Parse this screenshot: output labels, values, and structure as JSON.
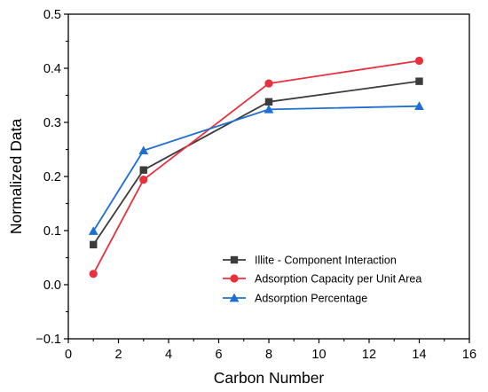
{
  "chart_data": {
    "type": "line",
    "title": "",
    "xlabel": "Carbon Number",
    "ylabel": "Normalized Data",
    "xlim": [
      0,
      16
    ],
    "ylim": [
      -0.1,
      0.5
    ],
    "x_ticks": [
      0,
      2,
      4,
      6,
      8,
      10,
      12,
      14,
      16
    ],
    "y_ticks": [
      -0.1,
      0.0,
      0.1,
      0.2,
      0.3,
      0.4,
      0.5
    ],
    "x_tick_labels": [
      "0",
      "2",
      "4",
      "6",
      "8",
      "10",
      "12",
      "14",
      "16"
    ],
    "y_tick_labels": [
      "−0.1",
      "0.0",
      "0.1",
      "0.2",
      "0.3",
      "0.4",
      "0.5"
    ],
    "grid": false,
    "legend_position": "bottom-right",
    "series": [
      {
        "name": "Illite - Component Interaction",
        "marker": "square",
        "color": "#3c3c3c",
        "x": [
          1,
          3,
          8,
          14
        ],
        "y": [
          0.074,
          0.212,
          0.338,
          0.376
        ]
      },
      {
        "name": "Adsorption Capacity per Unit Area",
        "marker": "circle",
        "color": "#e8303e",
        "x": [
          1,
          3,
          8,
          14
        ],
        "y": [
          0.02,
          0.194,
          0.372,
          0.414
        ]
      },
      {
        "name": "Adsorption Percentage",
        "marker": "triangle",
        "color": "#1f6fd1",
        "x": [
          1,
          3,
          8,
          14
        ],
        "y": [
          0.099,
          0.248,
          0.324,
          0.33
        ]
      }
    ]
  }
}
